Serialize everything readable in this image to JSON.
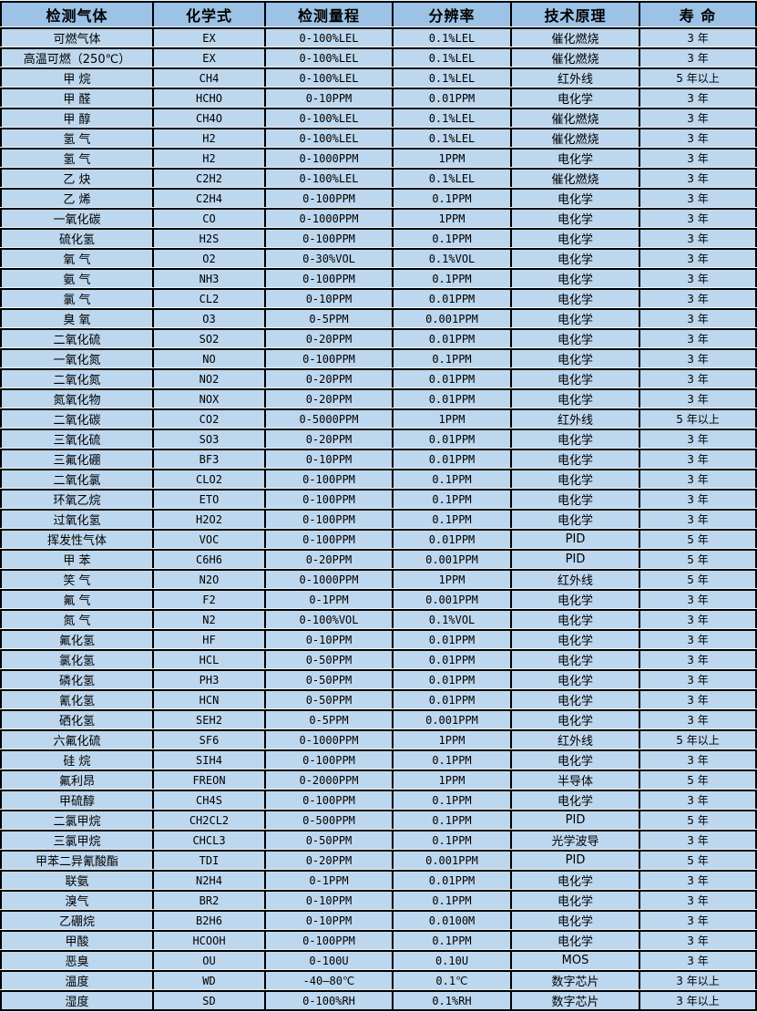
{
  "colors": {
    "header_bg": "#9cc2e5",
    "row_bg": "#bdd7ee",
    "border": "#000000",
    "gap": "#eef3fa",
    "text": "#000000"
  },
  "table": {
    "column_keys": [
      "gas",
      "formula",
      "range",
      "resolution",
      "principle",
      "lifespan"
    ],
    "columns": [
      "检测气体",
      "化学式",
      "检测量程",
      "分辨率",
      "技术原理",
      "寿 命"
    ],
    "rows": [
      [
        "可燃气体",
        "EX",
        "0-100%LEL",
        "0.1%LEL",
        "催化燃烧",
        "3 年"
      ],
      [
        "高温可燃（250℃）",
        "EX",
        "0-100%LEL",
        "0.1%LEL",
        "催化燃烧",
        "3 年"
      ],
      [
        "甲 烷",
        "CH4",
        "0-100%LEL",
        "0.1%LEL",
        "红外线",
        "5 年以上"
      ],
      [
        "甲 醛",
        "HCHO",
        "0-10PPM",
        "0.01PPM",
        "电化学",
        "3 年"
      ],
      [
        "甲 醇",
        "CH4O",
        "0-100%LEL",
        "0.1%LEL",
        "催化燃烧",
        "3 年"
      ],
      [
        "氢 气",
        "H2",
        "0-100%LEL",
        "0.1%LEL",
        "催化燃烧",
        "3 年"
      ],
      [
        "氢 气",
        "H2",
        "0-1000PPM",
        "1PPM",
        "电化学",
        "3 年"
      ],
      [
        "乙 炔",
        "C2H2",
        "0-100%LEL",
        "0.1%LEL",
        "催化燃烧",
        "3 年"
      ],
      [
        "乙 烯",
        "C2H4",
        "0-100PPM",
        "0.1PPM",
        "电化学",
        "3 年"
      ],
      [
        "一氧化碳",
        "CO",
        "0-1000PPM",
        "1PPM",
        "电化学",
        "3 年"
      ],
      [
        "硫化氢",
        "H2S",
        "0-100PPM",
        "0.1PPM",
        "电化学",
        "3 年"
      ],
      [
        "氧 气",
        "O2",
        "0-30%VOL",
        "0.1%VOL",
        "电化学",
        "3 年"
      ],
      [
        "氨 气",
        "NH3",
        "0-100PPM",
        "0.1PPM",
        "电化学",
        "3 年"
      ],
      [
        "氯 气",
        "CL2",
        "0-10PPM",
        "0.01PPM",
        "电化学",
        "3 年"
      ],
      [
        "臭 氧",
        "O3",
        "0-5PPM",
        "0.001PPM",
        "电化学",
        "3 年"
      ],
      [
        "二氧化硫",
        "SO2",
        "0-20PPM",
        "0.01PPM",
        "电化学",
        "3 年"
      ],
      [
        "一氧化氮",
        "NO",
        "0-100PPM",
        "0.1PPM",
        "电化学",
        "3 年"
      ],
      [
        "二氧化氮",
        "NO2",
        "0-20PPM",
        "0.01PPM",
        "电化学",
        "3 年"
      ],
      [
        "氮氧化物",
        "NOX",
        "0-20PPM",
        "0.01PPM",
        "电化学",
        "3 年"
      ],
      [
        "二氧化碳",
        "CO2",
        "0-5000PPM",
        "1PPM",
        "红外线",
        "5 年以上"
      ],
      [
        "三氧化硫",
        "SO3",
        "0-20PPM",
        "0.01PPM",
        "电化学",
        "3 年"
      ],
      [
        "三氟化硼",
        "BF3",
        "0-10PPM",
        "0.01PPM",
        "电化学",
        "3 年"
      ],
      [
        "二氧化氯",
        "CLO2",
        "0-100PPM",
        "0.1PPM",
        "电化学",
        "3 年"
      ],
      [
        "环氧乙烷",
        "ETO",
        "0-100PPM",
        "0.1PPM",
        "电化学",
        "3 年"
      ],
      [
        "过氧化氢",
        "H2O2",
        "0-100PPM",
        "0.1PPM",
        "电化学",
        "3 年"
      ],
      [
        "挥发性气体",
        "VOC",
        "0-100PPM",
        "0.01PPM",
        "PID",
        "5 年"
      ],
      [
        "甲 苯",
        "C6H6",
        "0-20PPM",
        "0.001PPM",
        "PID",
        "5 年"
      ],
      [
        "笑 气",
        "N2O",
        "0-1000PPM",
        "1PPM",
        "红外线",
        "5 年"
      ],
      [
        "氟 气",
        "F2",
        "0-1PPM",
        "0.001PPM",
        "电化学",
        "3 年"
      ],
      [
        "氮 气",
        "N2",
        "0-100%VOL",
        "0.1%VOL",
        "电化学",
        "3 年"
      ],
      [
        "氟化氢",
        "HF",
        "0-10PPM",
        "0.01PPM",
        "电化学",
        "3 年"
      ],
      [
        "氯化氢",
        "HCL",
        "0-50PPM",
        "0.01PPM",
        "电化学",
        "3 年"
      ],
      [
        "磷化氢",
        "PH3",
        "0-50PPM",
        "0.01PPM",
        "电化学",
        "3 年"
      ],
      [
        "氰化氢",
        "HCN",
        "0-50PPM",
        "0.01PPM",
        "电化学",
        "3 年"
      ],
      [
        "硒化氢",
        "SEH2",
        "0-5PPM",
        "0.001PPM",
        "电化学",
        "3 年"
      ],
      [
        "六氟化硫",
        "SF6",
        "0-1000PPM",
        "1PPM",
        "红外线",
        "5 年以上"
      ],
      [
        "硅 烷",
        "SIH4",
        "0-100PPM",
        "0.1PPM",
        "电化学",
        "3 年"
      ],
      [
        "氟利昂",
        "FREON",
        "0-2000PPM",
        "1PPM",
        "半导体",
        "5 年"
      ],
      [
        "甲硫醇",
        "CH4S",
        "0-100PPM",
        "0.1PPM",
        "电化学",
        "3 年"
      ],
      [
        "二氯甲烷",
        "CH2CL2",
        "0-500PPM",
        "0.1PPM",
        "PID",
        "5 年"
      ],
      [
        "三氯甲烷",
        "CHCL3",
        "0-50PPM",
        "0.1PPM",
        "光学波导",
        "3 年"
      ],
      [
        "甲苯二异氰酸酯",
        "TDI",
        "0-20PPM",
        "0.001PPM",
        "PID",
        "5 年"
      ],
      [
        "联氨",
        "N2H4",
        "0-1PPM",
        "0.01PPM",
        "电化学",
        "3 年"
      ],
      [
        "溴气",
        "BR2",
        "0-10PPM",
        "0.1PPM",
        "电化学",
        "3 年"
      ],
      [
        "乙硼烷",
        "B2H6",
        "0-10PPM",
        "0.0100M",
        "电化学",
        "3 年"
      ],
      [
        "甲酸",
        "HCOOH",
        "0-100PPM",
        "0.1PPM",
        "电化学",
        "3 年"
      ],
      [
        "恶臭",
        "OU",
        "0-100U",
        "0.10U",
        "MOS",
        "3 年"
      ],
      [
        "温度",
        "WD",
        "-40—80℃",
        "0.1℃",
        "数字芯片",
        "3 年以上"
      ],
      [
        "湿度",
        "SD",
        "0-100%RH",
        "0.1%RH",
        "数字芯片",
        "3 年以上"
      ]
    ]
  }
}
